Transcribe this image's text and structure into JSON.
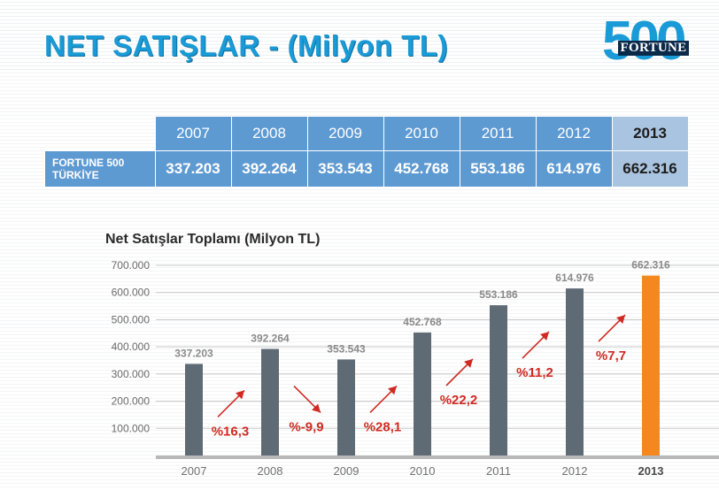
{
  "header": {
    "title": "NET SATIŞLAR - (Milyon TL)",
    "logo_digits": "500",
    "logo_word": "FORTUNE"
  },
  "table": {
    "row_label_line1": "FORTUNE 500",
    "row_label_line2": "TÜRKİYE",
    "years": [
      "2007",
      "2008",
      "2009",
      "2010",
      "2011",
      "2012",
      "2013"
    ],
    "values": [
      "337.203",
      "392.264",
      "353.543",
      "452.768",
      "553.186",
      "614.976",
      "662.316"
    ]
  },
  "chart_data": {
    "type": "bar",
    "title": "Net Satışlar Toplamı (Milyon TL)",
    "xlabel": "",
    "ylabel": "",
    "categories": [
      "2007",
      "2008",
      "2009",
      "2010",
      "2011",
      "2012",
      "2013"
    ],
    "values": [
      337.203,
      392.264,
      353.543,
      452.768,
      553.186,
      614.976,
      662.316
    ],
    "value_labels": [
      "337.203",
      "392.264",
      "353.543",
      "452.768",
      "553.186",
      "614.976",
      "662.316"
    ],
    "yticks": [
      100,
      200,
      300,
      400,
      500,
      600,
      700
    ],
    "ytick_labels": [
      "100.000",
      "200.000",
      "300.000",
      "400.000",
      "500.000",
      "600.000",
      "700.000"
    ],
    "ylim": [
      0,
      700
    ],
    "grid": true,
    "highlight_category": "2013",
    "growth_labels": [
      "%16,3",
      "%-9,9",
      "%28,1",
      "%22,2",
      "%11,2",
      "%7,7"
    ],
    "growth_direction": [
      "up",
      "down",
      "up",
      "up",
      "up",
      "up"
    ],
    "colors": {
      "bar": "#5f6b74",
      "bar_highlight": "#f5871f",
      "growth": "#d02a22",
      "value_label": "#8a8a8a",
      "title_blue": "#1a9ad6",
      "table_blue": "#5e9ad2"
    }
  }
}
